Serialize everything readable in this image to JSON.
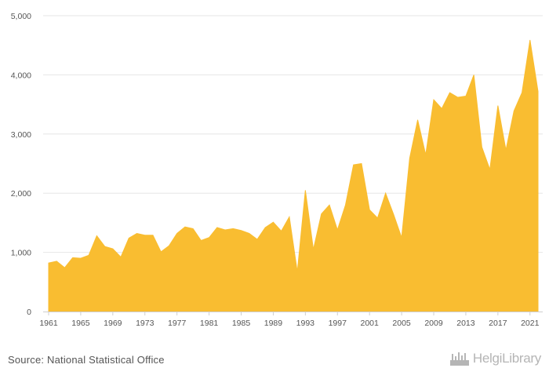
{
  "chart_data": {
    "type": "area",
    "title": "",
    "xlabel": "",
    "ylabel": "",
    "x": [
      1961,
      1962,
      1963,
      1964,
      1965,
      1966,
      1967,
      1968,
      1969,
      1970,
      1971,
      1972,
      1973,
      1974,
      1975,
      1976,
      1977,
      1978,
      1979,
      1980,
      1981,
      1982,
      1983,
      1984,
      1985,
      1986,
      1987,
      1988,
      1989,
      1990,
      1991,
      1992,
      1993,
      1994,
      1995,
      1996,
      1997,
      1998,
      1999,
      2000,
      2001,
      2002,
      2003,
      2004,
      2005,
      2006,
      2007,
      2008,
      2009,
      2010,
      2011,
      2012,
      2013,
      2014,
      2015,
      2016,
      2017,
      2018,
      2019,
      2020,
      2021,
      2022
    ],
    "values": [
      820,
      850,
      740,
      910,
      900,
      950,
      1280,
      1100,
      1060,
      920,
      1240,
      1320,
      1290,
      1290,
      1010,
      1110,
      1320,
      1430,
      1400,
      1200,
      1250,
      1420,
      1380,
      1400,
      1370,
      1320,
      1220,
      1420,
      1510,
      1360,
      1600,
      670,
      2050,
      1050,
      1650,
      1800,
      1380,
      1800,
      2480,
      2500,
      1720,
      1580,
      2000,
      1640,
      1250,
      2590,
      3240,
      2650,
      3580,
      3430,
      3700,
      3620,
      3640,
      4000,
      2780,
      2400,
      3480,
      2730,
      3390,
      3700,
      4590,
      3720
    ],
    "ylim": [
      0,
      5000
    ],
    "y_ticks": [
      0,
      1000,
      2000,
      3000,
      4000,
      5000
    ],
    "y_tick_labels": [
      "0",
      "1,000",
      "2,000",
      "3,000",
      "4,000",
      "5,000"
    ],
    "x_tick_labels": [
      "1961",
      "1965",
      "1969",
      "1973",
      "1977",
      "1981",
      "1985",
      "1989",
      "1993",
      "1997",
      "2001",
      "2005",
      "2009",
      "2013",
      "2017",
      "2021"
    ],
    "grid": "horizontal",
    "legend": "none",
    "fill_color": "#F9BD31",
    "grid_color": "#e6e6e6",
    "axis_color": "#cfcfcf"
  },
  "footer": {
    "source": "Source: National Statistical Office",
    "brand": "HelgiLibrary",
    "brand_icon": "factory-icon"
  }
}
